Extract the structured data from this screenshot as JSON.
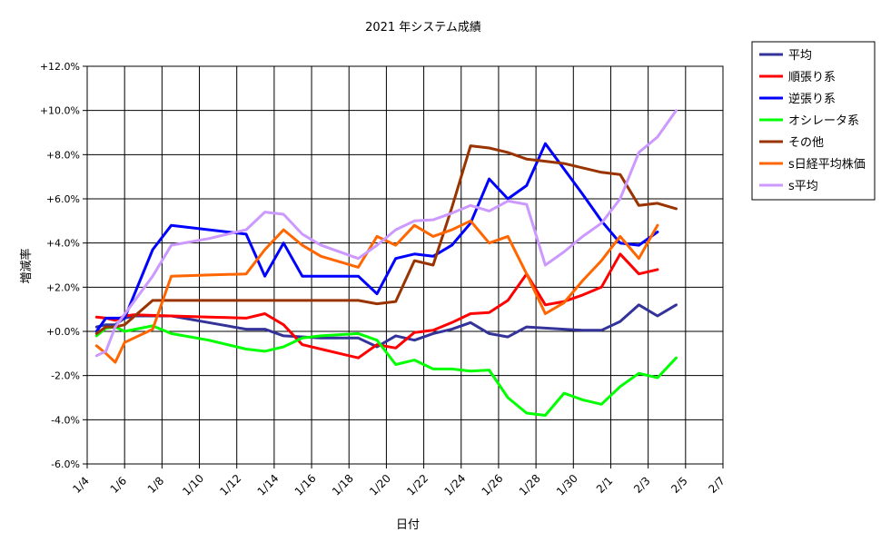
{
  "chart_data": {
    "type": "line",
    "title": "2021 年システム成績",
    "xlabel": "日付",
    "ylabel": "増減率",
    "x_range_days": [
      "1/4",
      "2/7"
    ],
    "ylim": [
      -6.0,
      12.0
    ],
    "y_ticks": [
      -6,
      -4,
      -2,
      0,
      2,
      4,
      6,
      8,
      10,
      12
    ],
    "y_tick_labels": [
      "-6.0%",
      "-4.0%",
      "-2.0%",
      "+0.0%",
      "+2.0%",
      "+4.0%",
      "+6.0%",
      "+8.0%",
      "+10.0%",
      "+12.0%"
    ],
    "x_tick_labels": [
      "1/4",
      "1/6",
      "1/8",
      "1/10",
      "1/12",
      "1/14",
      "1/16",
      "1/18",
      "1/20",
      "1/22",
      "1/24",
      "1/26",
      "1/28",
      "1/30",
      "2/1",
      "2/3",
      "2/5",
      "2/7"
    ],
    "grid": true,
    "legend": "right",
    "series": [
      {
        "name": "平均",
        "color": "#333399",
        "points": [
          [
            0.5,
            0.2
          ],
          [
            1,
            0.3
          ],
          [
            1.5,
            0.3
          ],
          [
            2,
            0.6
          ],
          [
            2.5,
            0.7
          ],
          [
            4.5,
            0.7
          ],
          [
            6.5,
            0.4
          ],
          [
            8.5,
            0.1
          ],
          [
            9.5,
            0.1
          ],
          [
            10.5,
            -0.2
          ],
          [
            12.5,
            -0.3
          ],
          [
            14.5,
            -0.3
          ],
          [
            15.5,
            -0.7
          ],
          [
            16.5,
            -0.2
          ],
          [
            17.5,
            -0.4
          ],
          [
            18.5,
            -0.1
          ],
          [
            19.5,
            0.1
          ],
          [
            20.5,
            0.4
          ],
          [
            21.5,
            -0.1
          ],
          [
            22.5,
            -0.25
          ],
          [
            23.5,
            0.2
          ],
          [
            24.5,
            0.15
          ],
          [
            25.5,
            0.1
          ],
          [
            26.5,
            0.05
          ],
          [
            27.5,
            0.05
          ],
          [
            28.5,
            0.45
          ],
          [
            29.5,
            1.2
          ],
          [
            30.5,
            0.7
          ],
          [
            31.5,
            1.2
          ]
        ]
      },
      {
        "name": "順張り系",
        "color": "#ff0000",
        "points": [
          [
            0.5,
            0.65
          ],
          [
            1,
            0.6
          ],
          [
            1.5,
            0.5
          ],
          [
            2,
            0.7
          ],
          [
            2.5,
            0.75
          ],
          [
            4.5,
            0.7
          ],
          [
            6.5,
            0.65
          ],
          [
            8.5,
            0.6
          ],
          [
            9.5,
            0.8
          ],
          [
            10.5,
            0.3
          ],
          [
            11.5,
            -0.6
          ],
          [
            12.5,
            -0.8
          ],
          [
            14.5,
            -1.2
          ],
          [
            15.5,
            -0.6
          ],
          [
            16.5,
            -0.75
          ],
          [
            17.5,
            -0.05
          ],
          [
            18.5,
            0.05
          ],
          [
            19.5,
            0.4
          ],
          [
            20.5,
            0.8
          ],
          [
            21.5,
            0.85
          ],
          [
            22.5,
            1.4
          ],
          [
            23.5,
            2.6
          ],
          [
            24.5,
            1.2
          ],
          [
            25.5,
            1.35
          ],
          [
            26.5,
            1.65
          ],
          [
            27.5,
            2.0
          ],
          [
            28.5,
            3.5
          ],
          [
            29.5,
            2.6
          ],
          [
            30.5,
            2.8
          ]
        ]
      },
      {
        "name": "逆張り系",
        "color": "#0000ff",
        "points": [
          [
            0.5,
            0.0
          ],
          [
            1,
            0.6
          ],
          [
            1.5,
            0.6
          ],
          [
            2,
            0.6
          ],
          [
            3.5,
            3.7
          ],
          [
            4.5,
            4.8
          ],
          [
            8.5,
            4.4
          ],
          [
            9.5,
            2.5
          ],
          [
            10.5,
            4.0
          ],
          [
            11.5,
            2.5
          ],
          [
            12.5,
            2.5
          ],
          [
            14.5,
            2.5
          ],
          [
            15.5,
            1.7
          ],
          [
            16.5,
            3.3
          ],
          [
            17.5,
            3.5
          ],
          [
            18.5,
            3.4
          ],
          [
            19.5,
            3.9
          ],
          [
            20.5,
            4.9
          ],
          [
            21.5,
            6.9
          ],
          [
            22.5,
            6.0
          ],
          [
            23.5,
            6.6
          ],
          [
            24.5,
            8.5
          ],
          [
            26.5,
            6.2
          ],
          [
            27.5,
            5.0
          ],
          [
            28.5,
            4.0
          ],
          [
            29.5,
            3.9
          ],
          [
            30.5,
            4.5
          ]
        ]
      },
      {
        "name": "オシレータ系",
        "color": "#00ff00",
        "points": [
          [
            0.5,
            -0.2
          ],
          [
            1,
            0.15
          ],
          [
            1.5,
            0.2
          ],
          [
            2,
            0.0
          ],
          [
            3.5,
            0.25
          ],
          [
            4.5,
            -0.1
          ],
          [
            6.5,
            -0.4
          ],
          [
            8.5,
            -0.8
          ],
          [
            9.5,
            -0.9
          ],
          [
            10.5,
            -0.7
          ],
          [
            11.5,
            -0.3
          ],
          [
            12.5,
            -0.2
          ],
          [
            14.5,
            -0.1
          ],
          [
            15.5,
            -0.4
          ],
          [
            16.5,
            -1.5
          ],
          [
            17.5,
            -1.3
          ],
          [
            18.5,
            -1.7
          ],
          [
            19.5,
            -1.7
          ],
          [
            20.5,
            -1.8
          ],
          [
            21.5,
            -1.75
          ],
          [
            22.5,
            -3.0
          ],
          [
            23.5,
            -3.7
          ],
          [
            24.5,
            -3.8
          ],
          [
            25.5,
            -2.8
          ],
          [
            26.5,
            -3.1
          ],
          [
            27.5,
            -3.3
          ],
          [
            28.5,
            -2.5
          ],
          [
            29.5,
            -1.9
          ],
          [
            30.5,
            -2.1
          ],
          [
            31.5,
            -1.2
          ]
        ]
      },
      {
        "name": "その他",
        "color": "#993300",
        "points": [
          [
            0.5,
            -0.1
          ],
          [
            1,
            0.2
          ],
          [
            1.5,
            0.2
          ],
          [
            2,
            0.3
          ],
          [
            3.5,
            1.4
          ],
          [
            4.5,
            1.4
          ],
          [
            9.5,
            1.4
          ],
          [
            14.5,
            1.4
          ],
          [
            15.5,
            1.25
          ],
          [
            16.5,
            1.35
          ],
          [
            17.5,
            3.2
          ],
          [
            18.5,
            3.0
          ],
          [
            19.5,
            5.6
          ],
          [
            20.5,
            8.4
          ],
          [
            21.5,
            8.3
          ],
          [
            22.5,
            8.1
          ],
          [
            23.5,
            7.8
          ],
          [
            24.5,
            7.7
          ],
          [
            25.5,
            7.6
          ],
          [
            26.5,
            7.4
          ],
          [
            27.5,
            7.2
          ],
          [
            28.5,
            7.1
          ],
          [
            29.5,
            5.7
          ],
          [
            30.5,
            5.8
          ],
          [
            31.5,
            5.55
          ]
        ]
      },
      {
        "name": "s日経平均株価",
        "color": "#ff6600",
        "points": [
          [
            0.5,
            -0.65
          ],
          [
            1,
            -1.0
          ],
          [
            1.5,
            -1.4
          ],
          [
            2,
            -0.5
          ],
          [
            3.5,
            0.1
          ],
          [
            4.5,
            2.5
          ],
          [
            6.5,
            2.55
          ],
          [
            8.5,
            2.6
          ],
          [
            9.5,
            3.7
          ],
          [
            10.5,
            4.6
          ],
          [
            11.5,
            3.9
          ],
          [
            12.5,
            3.4
          ],
          [
            14.5,
            2.9
          ],
          [
            15.5,
            4.3
          ],
          [
            16.5,
            3.9
          ],
          [
            17.5,
            4.8
          ],
          [
            18.5,
            4.3
          ],
          [
            19.5,
            4.6
          ],
          [
            20.5,
            5.0
          ],
          [
            21.5,
            4.0
          ],
          [
            22.5,
            4.3
          ],
          [
            23.5,
            2.6
          ],
          [
            24.5,
            0.8
          ],
          [
            25.5,
            1.3
          ],
          [
            26.5,
            2.3
          ],
          [
            27.5,
            3.2
          ],
          [
            28.5,
            4.3
          ],
          [
            29.5,
            3.3
          ],
          [
            30.5,
            4.8
          ]
        ]
      },
      {
        "name": "s平均",
        "color": "#cc99ff",
        "points": [
          [
            0.5,
            -1.1
          ],
          [
            1,
            -0.9
          ],
          [
            1.5,
            0.2
          ],
          [
            3.5,
            2.5
          ],
          [
            4.5,
            3.9
          ],
          [
            6.5,
            4.2
          ],
          [
            8.5,
            4.6
          ],
          [
            9.5,
            5.4
          ],
          [
            10.5,
            5.3
          ],
          [
            11.5,
            4.4
          ],
          [
            12.5,
            3.9
          ],
          [
            14.5,
            3.3
          ],
          [
            15.5,
            3.9
          ],
          [
            16.5,
            4.6
          ],
          [
            17.5,
            5.0
          ],
          [
            18.5,
            5.05
          ],
          [
            19.5,
            5.35
          ],
          [
            20.5,
            5.7
          ],
          [
            21.5,
            5.45
          ],
          [
            22.5,
            5.9
          ],
          [
            23.5,
            5.75
          ],
          [
            24.5,
            3.0
          ],
          [
            25.5,
            3.6
          ],
          [
            26.5,
            4.3
          ],
          [
            27.5,
            4.9
          ],
          [
            28.5,
            6.0
          ],
          [
            29.5,
            8.1
          ],
          [
            30.5,
            8.8
          ],
          [
            31.5,
            10.0
          ]
        ]
      }
    ]
  }
}
